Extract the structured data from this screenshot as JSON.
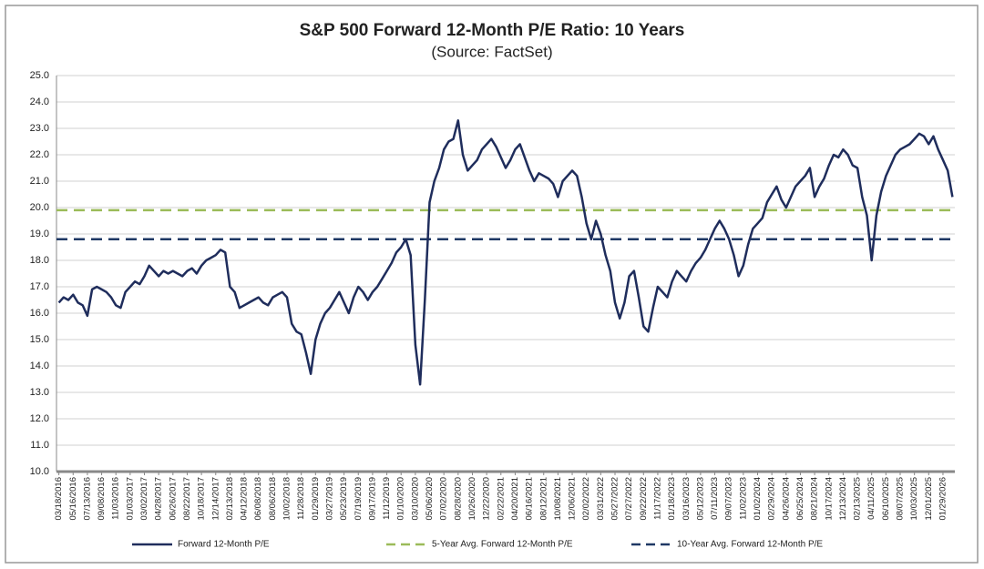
{
  "chart_data": {
    "type": "line",
    "title": "S&P 500 Forward 12-Month P/E Ratio: 10 Years",
    "subtitle": "(Source: FactSet)",
    "categories": [
      "03/18/2016",
      null,
      null,
      "05/16/2016",
      null,
      null,
      "07/13/2016",
      null,
      null,
      "09/08/2016",
      null,
      null,
      "11/03/2016",
      null,
      null,
      "01/03/2017",
      null,
      null,
      "03/02/2017",
      null,
      null,
      "04/28/2017",
      null,
      null,
      "06/26/2017",
      null,
      null,
      "08/22/2017",
      null,
      null,
      "10/18/2017",
      null,
      null,
      "12/14/2017",
      null,
      null,
      "02/13/2018",
      null,
      null,
      "04/12/2018",
      null,
      null,
      "06/08/2018",
      null,
      null,
      "08/06/2018",
      null,
      null,
      "10/02/2018",
      null,
      null,
      "11/28/2018",
      null,
      null,
      "01/29/2019",
      null,
      null,
      "03/27/2019",
      null,
      null,
      "05/23/2019",
      null,
      null,
      "07/19/2019",
      null,
      null,
      "09/17/2019",
      null,
      null,
      "11/12/2019",
      null,
      null,
      "01/10/2020",
      null,
      null,
      "03/10/2020",
      null,
      null,
      "05/06/2020",
      null,
      null,
      "07/02/2020",
      null,
      null,
      "08/28/2020",
      null,
      null,
      "10/26/2020",
      null,
      null,
      "12/22/2020",
      null,
      null,
      "02/22/2021",
      null,
      null,
      "04/20/2021",
      null,
      null,
      "06/16/2021",
      null,
      null,
      "08/12/2021",
      null,
      null,
      "10/08/2021",
      null,
      null,
      "12/06/2021",
      null,
      null,
      "02/02/2022",
      null,
      null,
      "03/31/2022",
      null,
      null,
      "05/27/2022",
      null,
      null,
      "07/27/2022",
      null,
      null,
      "09/22/2022",
      null,
      null,
      "11/17/2022",
      null,
      null,
      "01/18/2023",
      null,
      null,
      "03/16/2023",
      null,
      null,
      "05/12/2023",
      null,
      null,
      "07/11/2023",
      null,
      null,
      "09/07/2023",
      null,
      null,
      "11/02/2023",
      null,
      null,
      "01/02/2024",
      null,
      null,
      "02/29/2024",
      null,
      null,
      "04/26/2024",
      null,
      null,
      "06/25/2024",
      null,
      null,
      "08/21/2024",
      null,
      null,
      "10/17/2024",
      null,
      null,
      "12/13/2024",
      null,
      null,
      "02/13/2025",
      null,
      null,
      "04/11/2025",
      null,
      null,
      "06/10/2025",
      null,
      null,
      "08/07/2025",
      null,
      null,
      "10/03/2025",
      null,
      null,
      "12/01/2025",
      null,
      null,
      "01/29/2026",
      null,
      null
    ],
    "series": [
      {
        "name": "Forward 12-Month P/E",
        "color": "#1f2d5c",
        "values": [
          16.4,
          16.6,
          16.5,
          16.7,
          16.4,
          16.3,
          15.9,
          16.9,
          17.0,
          16.9,
          16.8,
          16.6,
          16.3,
          16.2,
          16.8,
          17.0,
          17.2,
          17.1,
          17.4,
          17.8,
          17.6,
          17.4,
          17.6,
          17.5,
          17.6,
          17.5,
          17.4,
          17.6,
          17.7,
          17.5,
          17.8,
          18.0,
          18.1,
          18.2,
          18.4,
          18.3,
          17.0,
          16.8,
          16.2,
          16.3,
          16.4,
          16.5,
          16.6,
          16.4,
          16.3,
          16.6,
          16.7,
          16.8,
          16.6,
          15.6,
          15.3,
          15.2,
          14.5,
          13.7,
          15.0,
          15.6,
          16.0,
          16.2,
          16.5,
          16.8,
          16.4,
          16.0,
          16.6,
          17.0,
          16.8,
          16.5,
          16.8,
          17.0,
          17.3,
          17.6,
          17.9,
          18.3,
          18.5,
          18.8,
          18.2,
          14.8,
          13.3,
          16.5,
          20.2,
          21.0,
          21.5,
          22.2,
          22.5,
          22.6,
          23.3,
          22.0,
          21.4,
          21.6,
          21.8,
          22.2,
          22.4,
          22.6,
          22.3,
          21.9,
          21.5,
          21.8,
          22.2,
          22.4,
          21.9,
          21.4,
          21.0,
          21.3,
          21.2,
          21.1,
          20.9,
          20.4,
          21.0,
          21.2,
          21.4,
          21.2,
          20.4,
          19.4,
          18.8,
          19.5,
          19.0,
          18.2,
          17.6,
          16.4,
          15.8,
          16.4,
          17.4,
          17.6,
          16.6,
          15.5,
          15.3,
          16.2,
          17.0,
          16.8,
          16.6,
          17.2,
          17.6,
          17.4,
          17.2,
          17.6,
          17.9,
          18.1,
          18.4,
          18.8,
          19.2,
          19.5,
          19.2,
          18.8,
          18.2,
          17.4,
          17.8,
          18.6,
          19.2,
          19.4,
          19.6,
          20.2,
          20.5,
          20.8,
          20.3,
          20.0,
          20.4,
          20.8,
          21.0,
          21.2,
          21.5,
          20.4,
          20.8,
          21.1,
          21.6,
          22.0,
          21.9,
          22.2,
          22.0,
          21.6,
          21.5,
          20.4,
          19.7,
          18.0,
          19.7,
          20.6,
          21.2,
          21.6,
          22.0,
          22.2,
          22.3,
          22.4,
          22.6,
          22.8,
          22.7,
          22.4,
          22.7,
          22.2,
          21.8,
          21.4,
          20.4
        ]
      }
    ],
    "reference_lines": [
      {
        "name": "5-Year Avg. Forward 12-Month P/E",
        "value": 19.9,
        "color": "#9bbb59"
      },
      {
        "name": "10-Year Avg. Forward 12-Month P/E",
        "value": 18.8,
        "color": "#1f3864"
      }
    ],
    "ylim": [
      10,
      25
    ],
    "yticks": [
      {
        "value": 10,
        "label": "10.0"
      },
      {
        "value": 11,
        "label": "11.0"
      },
      {
        "value": 12,
        "label": "12.0"
      },
      {
        "value": 13,
        "label": "13.0"
      },
      {
        "value": 14,
        "label": "14.0"
      },
      {
        "value": 15,
        "label": "15.0"
      },
      {
        "value": 16,
        "label": "16.0"
      },
      {
        "value": 17,
        "label": "17.0"
      },
      {
        "value": 18,
        "label": "18.0"
      },
      {
        "value": 19,
        "label": "19.0"
      },
      {
        "value": 20,
        "label": "20.0"
      },
      {
        "value": 21,
        "label": "21.0"
      },
      {
        "value": 22,
        "label": "22.0"
      },
      {
        "value": 23,
        "label": "23.0"
      },
      {
        "value": 24,
        "label": "24.0"
      },
      {
        "value": 25,
        "label": "25.0"
      }
    ],
    "grid": true,
    "legend": "bottom"
  }
}
